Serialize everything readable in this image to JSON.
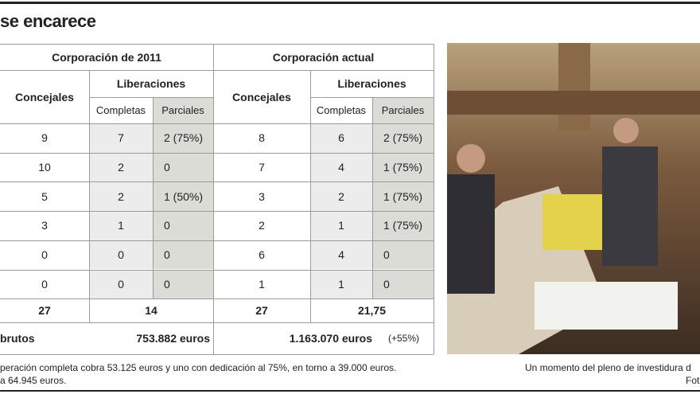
{
  "header": {
    "title": "se encarece"
  },
  "table": {
    "groups": [
      {
        "title": "Corporación de 2011",
        "concejales": "Concejales",
        "liberaciones": "Liberaciones",
        "completas": "Completas",
        "parciales": "Parciales"
      },
      {
        "title": "Corporación actual",
        "concejales": "Concejales",
        "liberaciones": "Liberaciones",
        "completas": "Completas",
        "parciales": "Parciales"
      }
    ],
    "rows": [
      [
        "9",
        "7",
        "2 (75%)",
        "8",
        "6",
        "2 (75%)"
      ],
      [
        "10",
        "2",
        "0",
        "7",
        "4",
        "1 (75%)"
      ],
      [
        "5",
        "2",
        "1 (50%)",
        "3",
        "2",
        "1 (75%)"
      ],
      [
        "3",
        "1",
        "0",
        "2",
        "1",
        "1 (75%)"
      ],
      [
        "0",
        "0",
        "0",
        "6",
        "4",
        "0"
      ],
      [
        "0",
        "0",
        "0",
        "1",
        "1",
        "0"
      ]
    ],
    "totals": [
      "27",
      "14",
      "27",
      "21,75"
    ],
    "cost": {
      "label": "brutos",
      "values": [
        "753.882 euros",
        "1.163.070 euros"
      ],
      "change": "(+55%)"
    }
  },
  "footnote": {
    "lines": [
      "peración completa cobra 53.125 euros y uno con dedicación al 75%, en torno a 39.000 euros.",
      "a 64.945 euros."
    ]
  },
  "photo": {
    "caption": [
      "Un momento del pleno de investidura d",
      "Fot"
    ]
  }
}
